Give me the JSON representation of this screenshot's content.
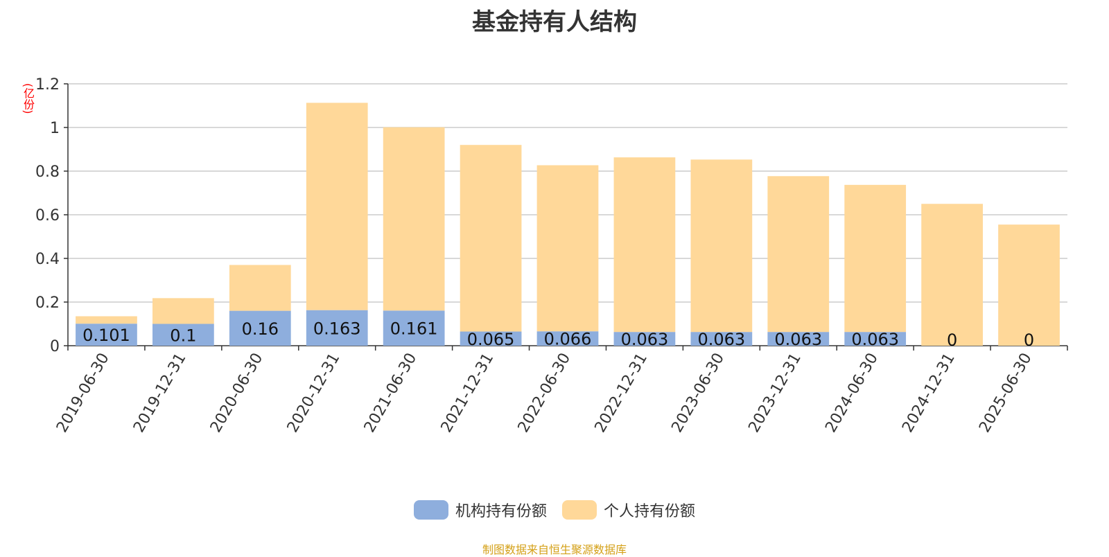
{
  "chart_data": {
    "type": "bar",
    "stacked": true,
    "title": "基金持有人结构",
    "ylabel": "(亿份)",
    "ylim": [
      0,
      1.2
    ],
    "yticks": [
      "0",
      "0.2",
      "0.4",
      "0.6",
      "0.8",
      "1",
      "1.2"
    ],
    "grid": true,
    "legend_position": "bottom",
    "categories": [
      "2019-06-30",
      "2019-12-31",
      "2020-06-30",
      "2020-12-31",
      "2021-06-30",
      "2021-12-31",
      "2022-06-30",
      "2022-12-31",
      "2023-06-30",
      "2023-12-31",
      "2024-06-30",
      "2024-12-31",
      "2025-06-30"
    ],
    "series": [
      {
        "name": "机构持有份额",
        "color": "#8eaedd",
        "values": [
          0.101,
          0.1,
          0.16,
          0.163,
          0.161,
          0.065,
          0.066,
          0.063,
          0.063,
          0.063,
          0.063,
          0,
          0
        ],
        "labels": [
          "0.101",
          "0.1",
          "0.16",
          "0.163",
          "0.161",
          "0.065",
          "0.066",
          "0.063",
          "0.063",
          "0.063",
          "0.063",
          "0",
          "0"
        ]
      },
      {
        "name": "个人持有份额",
        "color": "#ffd899",
        "values": [
          0.034,
          0.118,
          0.21,
          0.95,
          0.84,
          0.855,
          0.761,
          0.8,
          0.79,
          0.714,
          0.674,
          0.65,
          0.555
        ]
      }
    ]
  },
  "source": "制图数据来自恒生聚源数据库"
}
